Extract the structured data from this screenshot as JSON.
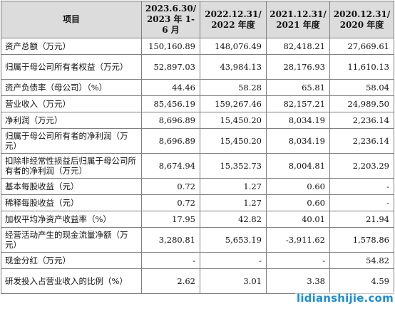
{
  "header": [
    "项目",
    "2023.6.30/\n2023 年 1-6 月",
    "2022.12.31/\n2022 年度",
    "2021.12.31/\n2021 年度",
    "2020.12.31/\n2020 年度"
  ],
  "rows": [
    {
      "label": "资产总额（万元）",
      "values": [
        "150,160.89",
        "148,076.49",
        "82,418.21",
        "27,669.61"
      ],
      "tall": false
    },
    {
      "label": "归属于母公司所有者权益（万元）",
      "values": [
        "52,897.03",
        "43,984.13",
        "28,176.93",
        "11,610.13"
      ],
      "tall": true
    },
    {
      "label": "资产负债率（母公司）（%）",
      "values": [
        "44.46",
        "58.28",
        "65.81",
        "58.04"
      ],
      "tall": false
    },
    {
      "label": "营业收入（万元）",
      "values": [
        "85,456.19",
        "159,267.46",
        "82,157.21",
        "24,989.50"
      ],
      "tall": false
    },
    {
      "label": "净利润（万元）",
      "values": [
        "8,696.89",
        "15,450.20",
        "8,034.19",
        "2,236.14"
      ],
      "tall": false
    },
    {
      "label": "归属于母公司所有者的净利润（万元）",
      "values": [
        "8,696.89",
        "15,450.20",
        "8,034.19",
        "2,236.14"
      ],
      "tall": true
    },
    {
      "label": "扣除非经常性损益后归属于母公司所有者的净利润（万元）",
      "values": [
        "8,674.94",
        "15,352.73",
        "8,004.81",
        "2,203.29"
      ],
      "tall": true
    },
    {
      "label": "基本每股收益（元）",
      "values": [
        "0.72",
        "1.27",
        "0.60",
        "-"
      ],
      "tall": false
    },
    {
      "label": "稀释每股收益（元）",
      "values": [
        "0.72",
        "1.27",
        "0.60",
        "-"
      ],
      "tall": false
    },
    {
      "label": "加权平均净资产收益率（%）",
      "values": [
        "17.95",
        "42.82",
        "40.01",
        "21.94"
      ],
      "tall": false
    },
    {
      "label": "经营活动产生的现金流量净额（万元）",
      "values": [
        "3,280.81",
        "5,653.19",
        "-3,911.62",
        "1,578.86"
      ],
      "tall": true
    },
    {
      "label": "现金分红（万元）",
      "values": [
        "-",
        "-",
        "-",
        "54.82"
      ],
      "tall": false
    },
    {
      "label": "研发投入占营业收入的比例（%）",
      "values": [
        "2.62",
        "3.01",
        "3.38",
        "4.59"
      ],
      "tall": true
    }
  ],
  "watermark": "lidianshijie.com"
}
